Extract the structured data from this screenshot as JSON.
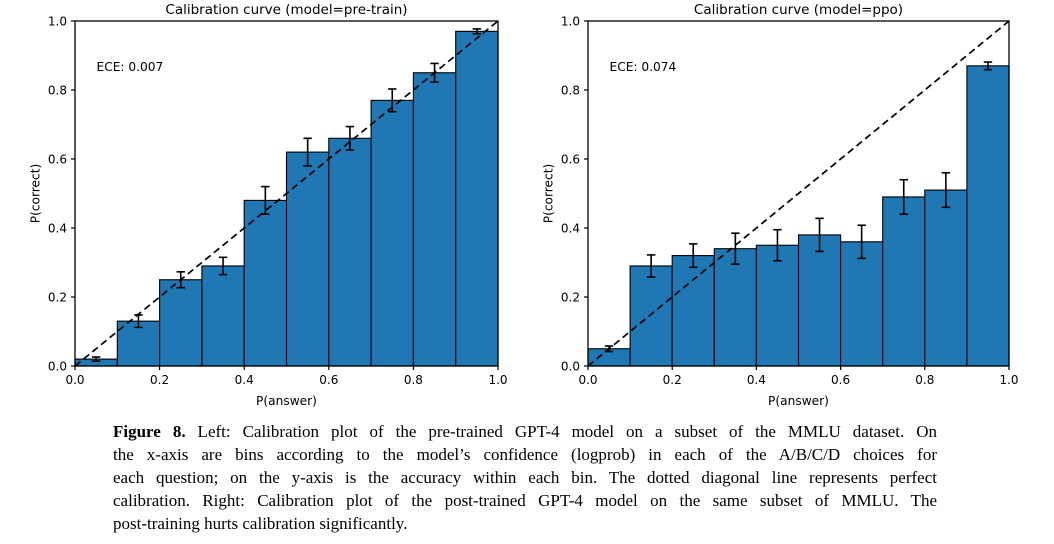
{
  "colors": {
    "bar_fill": "#1f77b4",
    "bar_edge": "#000000",
    "axis": "#000000",
    "text": "#000000",
    "background": "#ffffff"
  },
  "chart_data": [
    {
      "type": "bar",
      "title": "Calibration curve (model=pre-train)",
      "annotation": "ECE: 0.007",
      "xlabel": "P(answer)",
      "ylabel": "P(correct)",
      "xlim": [
        0.0,
        1.0
      ],
      "ylim": [
        0.0,
        1.0
      ],
      "xticks": [
        0.0,
        0.2,
        0.4,
        0.6,
        0.8,
        1.0
      ],
      "yticks": [
        0.0,
        0.2,
        0.4,
        0.6,
        0.8,
        1.0
      ],
      "grid": false,
      "legend": "none",
      "bin_width": 0.1,
      "bin_centers": [
        0.05,
        0.15,
        0.25,
        0.35,
        0.45,
        0.55,
        0.65,
        0.75,
        0.85,
        0.95
      ],
      "values": [
        0.02,
        0.13,
        0.25,
        0.29,
        0.48,
        0.62,
        0.66,
        0.77,
        0.85,
        0.97
      ],
      "errors": [
        0.006,
        0.018,
        0.023,
        0.025,
        0.04,
        0.04,
        0.034,
        0.033,
        0.027,
        0.007
      ],
      "diagonal_line": "dashed y=x (perfect calibration)"
    },
    {
      "type": "bar",
      "title": "Calibration curve (model=ppo)",
      "annotation": "ECE: 0.074",
      "xlabel": "P(answer)",
      "ylabel": "P(correct)",
      "xlim": [
        0.0,
        1.0
      ],
      "ylim": [
        0.0,
        1.0
      ],
      "xticks": [
        0.0,
        0.2,
        0.4,
        0.6,
        0.8,
        1.0
      ],
      "yticks": [
        0.0,
        0.2,
        0.4,
        0.6,
        0.8,
        1.0
      ],
      "grid": false,
      "legend": "none",
      "bin_width": 0.1,
      "bin_centers": [
        0.05,
        0.15,
        0.25,
        0.35,
        0.45,
        0.55,
        0.65,
        0.75,
        0.85,
        0.95
      ],
      "values": [
        0.05,
        0.29,
        0.32,
        0.34,
        0.35,
        0.38,
        0.36,
        0.49,
        0.51,
        0.87
      ],
      "errors": [
        0.008,
        0.032,
        0.034,
        0.045,
        0.045,
        0.048,
        0.048,
        0.05,
        0.05,
        0.011
      ],
      "diagonal_line": "dashed y=x (perfect calibration)"
    }
  ],
  "caption": {
    "label": "Figure 8.",
    "lines": [
      "Left: Calibration plot of the pre-trained GPT-4 model on a subset of the MMLU dataset. On",
      "the x-axis are bins according to the model’s confidence (logprob) in each of the A/B/C/D choices for",
      "each question; on the y-axis is the accuracy within each bin. The dotted diagonal line represents perfect",
      "calibration. Right: Calibration plot of the post-trained GPT-4 model on the same subset of MMLU. The",
      "post-training hurts calibration significantly."
    ]
  }
}
